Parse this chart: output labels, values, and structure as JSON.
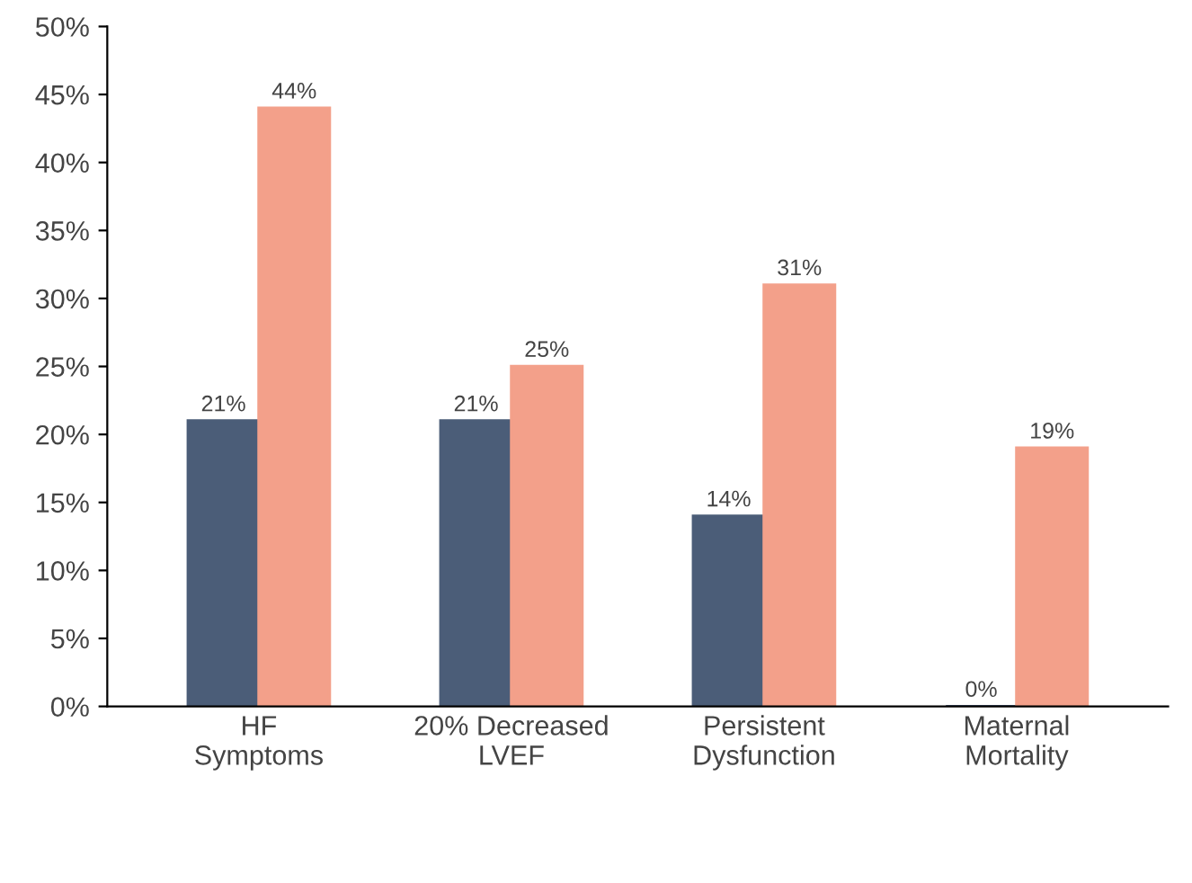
{
  "chart_data": {
    "type": "bar",
    "categories": [
      "HF\nSymptoms",
      "20% Decreased\nLVEF",
      "Persistent\nDysfunction",
      "Maternal\nMortality"
    ],
    "series": [
      {
        "color": "#4b5d78",
        "values": [
          21,
          21,
          14,
          0
        ],
        "value_labels": [
          "21%",
          "21%",
          "14%",
          "0%"
        ]
      },
      {
        "color": "#f3a08a",
        "values": [
          44,
          25,
          31,
          19
        ],
        "value_labels": [
          "44%",
          "25%",
          "31%",
          "19%"
        ]
      }
    ],
    "ylim": [
      0,
      50
    ],
    "yticks": [
      {
        "value": 0,
        "label": "0%"
      },
      {
        "value": 5,
        "label": "5%"
      },
      {
        "value": 10,
        "label": "10%"
      },
      {
        "value": 15,
        "label": "15%"
      },
      {
        "value": 20,
        "label": "20%"
      },
      {
        "value": 25,
        "label": "25%"
      },
      {
        "value": 30,
        "label": "30%"
      },
      {
        "value": 35,
        "label": "35%"
      },
      {
        "value": 40,
        "label": "40%"
      },
      {
        "value": 45,
        "label": "45%"
      },
      {
        "value": 50,
        "label": "50%"
      }
    ],
    "grid": false,
    "legend": false
  }
}
